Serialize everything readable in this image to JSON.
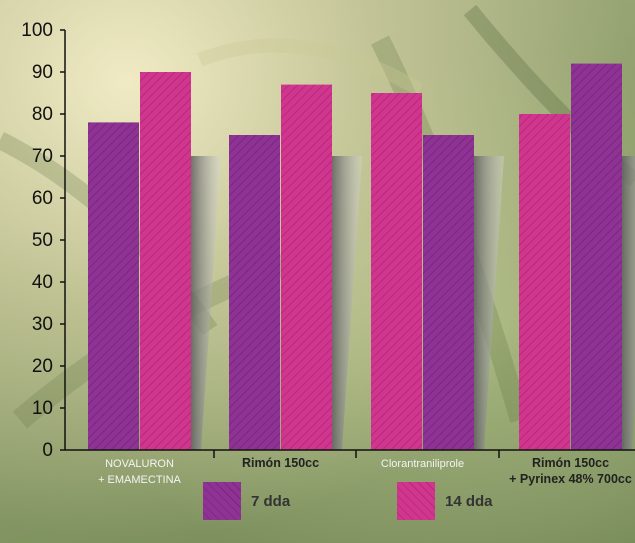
{
  "chart_data": {
    "type": "bar",
    "categories": [
      {
        "line1": "NOVALURON",
        "line2": "+ EMAMECTINA",
        "bold": false
      },
      {
        "line1": "Rimón 150cc",
        "line2": "",
        "bold": true
      },
      {
        "line1": "Clorantraniliprole",
        "line2": "",
        "bold": false
      },
      {
        "line1": "Rimón 150cc",
        "line2": "+ Pyrinex 48% 700cc",
        "bold": true
      }
    ],
    "bars": [
      [
        {
          "series": "7 dda",
          "value": 78
        },
        {
          "series": "14 dda",
          "value": 90
        }
      ],
      [
        {
          "series": "7 dda",
          "value": 75
        },
        {
          "series": "14 dda",
          "value": 87
        }
      ],
      [
        {
          "series": "14 dda",
          "value": 85
        },
        {
          "series": "7 dda",
          "value": 75
        }
      ],
      [
        {
          "series": "14 dda",
          "value": 80
        },
        {
          "series": "7 dda",
          "value": 92
        }
      ]
    ],
    "series": [
      {
        "name": "7 dda",
        "color": "#8e3293",
        "stripe": "#7a2782"
      },
      {
        "name": "14 dda",
        "color": "#d0368e",
        "stripe": "#b8287c"
      }
    ],
    "yticks": [
      "0",
      "10",
      "20",
      "30",
      "40",
      "50",
      "60",
      "70",
      "80",
      "90",
      "100"
    ],
    "ylim": [
      0,
      100
    ],
    "grid": false,
    "legend_position": "bottom"
  },
  "legend": {
    "item1": "7 dda",
    "item2": "14 dda"
  }
}
